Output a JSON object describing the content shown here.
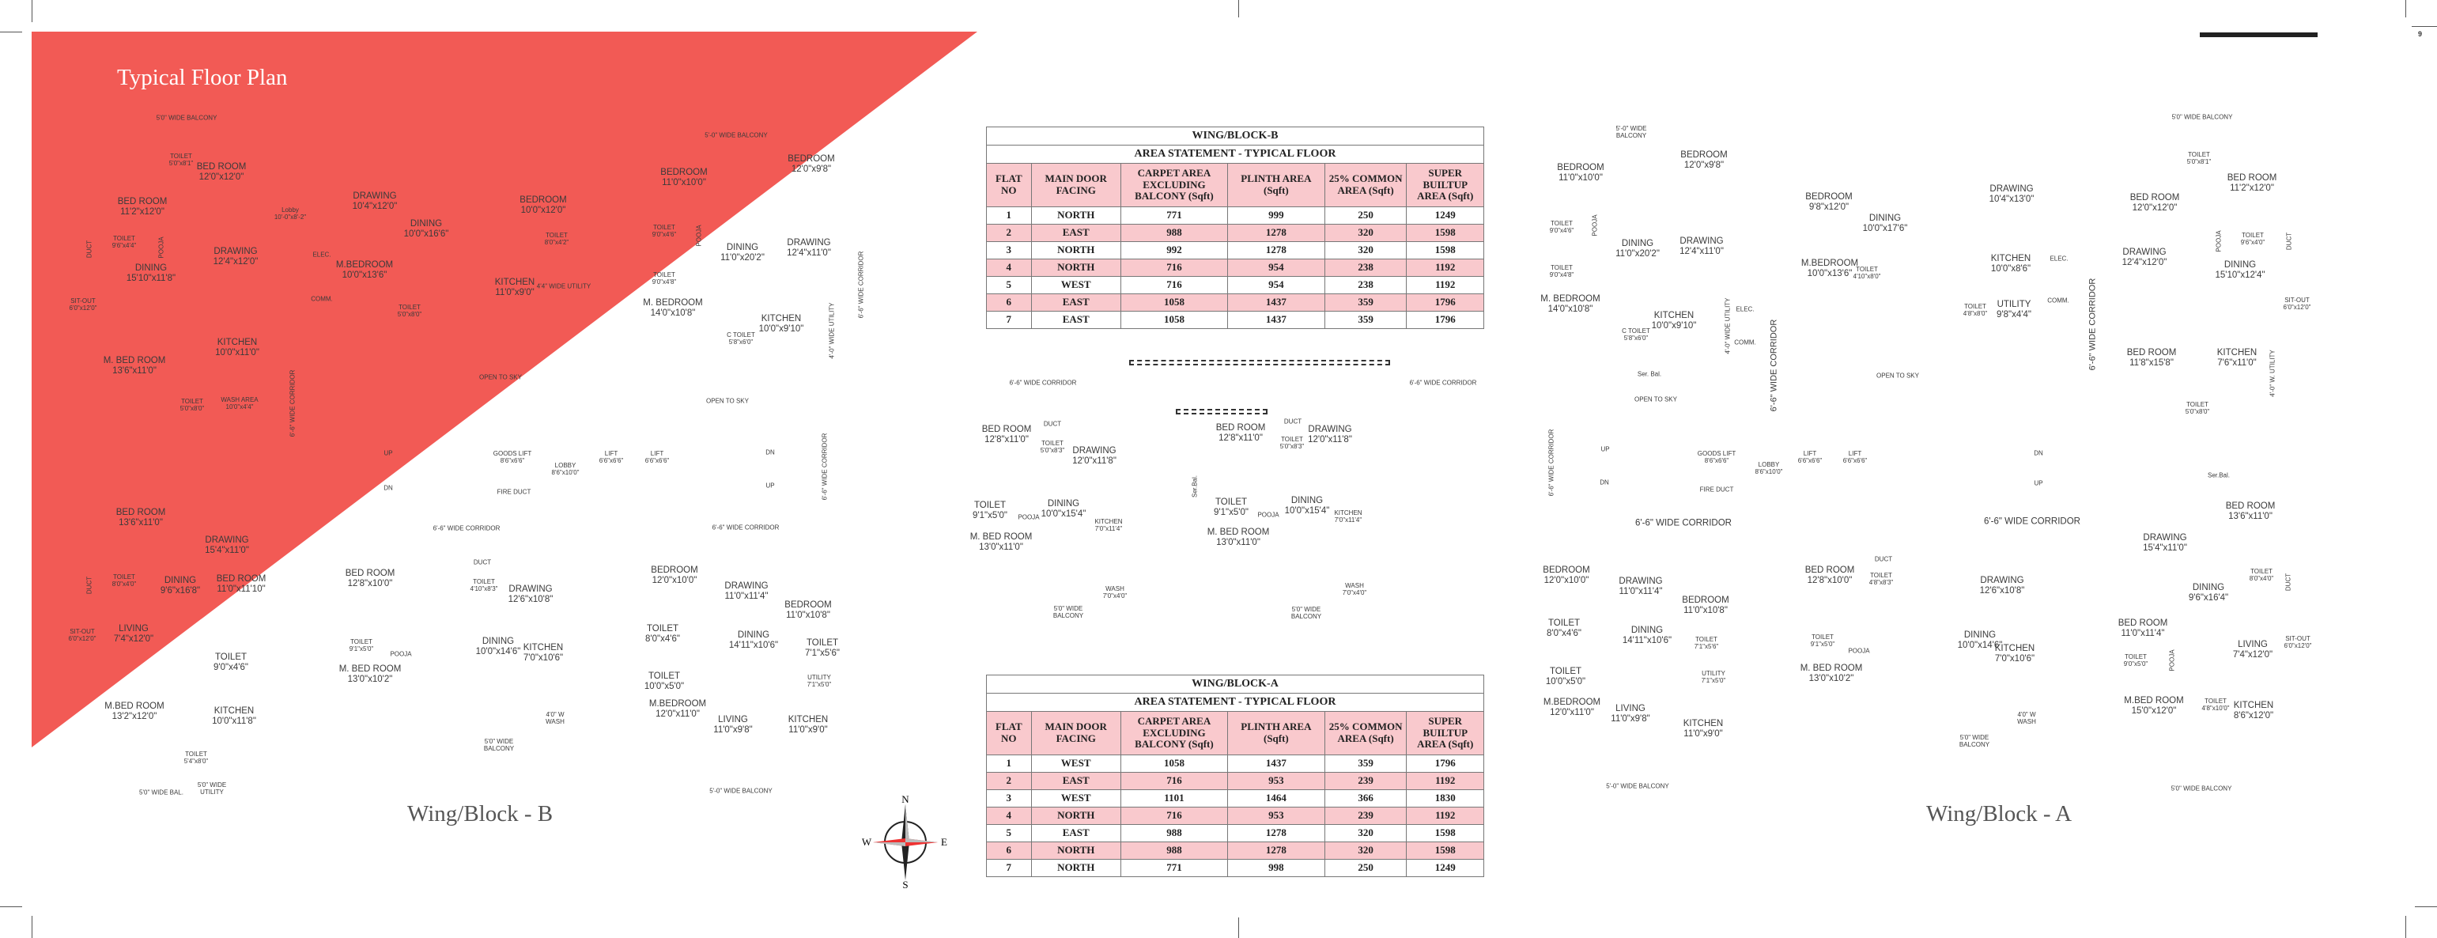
{
  "page": {
    "title": "Typical Floor Plan",
    "page_number": "9",
    "accent_color": "#f25a55",
    "table_highlight_color": "#f9c9cd"
  },
  "wing_labels": {
    "b": "Wing/Block - B",
    "a": "Wing/Block - A"
  },
  "compass": {
    "n": "N",
    "s": "S",
    "e": "E",
    "w": "W"
  },
  "table_b": {
    "title": "WING/BLOCK-B",
    "subtitle": "AREA STATEMENT - TYPICAL FLOOR",
    "headers": [
      "FLAT NO",
      "MAIN DOOR FACING",
      "CARPET AREA EXCLUDING BALCONY (Sqft)",
      "PLINTH AREA (Sqft)",
      "25% COMMON AREA (Sqft)",
      "SUPER BUILTUP AREA (Sqft)"
    ],
    "rows": [
      [
        "1",
        "NORTH",
        "771",
        "999",
        "250",
        "1249"
      ],
      [
        "2",
        "EAST",
        "988",
        "1278",
        "320",
        "1598"
      ],
      [
        "3",
        "NORTH",
        "992",
        "1278",
        "320",
        "1598"
      ],
      [
        "4",
        "NORTH",
        "716",
        "954",
        "238",
        "1192"
      ],
      [
        "5",
        "WEST",
        "716",
        "954",
        "238",
        "1192"
      ],
      [
        "6",
        "EAST",
        "1058",
        "1437",
        "359",
        "1796"
      ],
      [
        "7",
        "EAST",
        "1058",
        "1437",
        "359",
        "1796"
      ]
    ]
  },
  "table_a": {
    "title": "WING/BLOCK-A",
    "subtitle": "AREA STATEMENT - TYPICAL FLOOR",
    "headers": [
      "FLAT NO",
      "MAIN DOOR FACING",
      "CARPET AREA EXCLUDING BALCONY (Sqft)",
      "PLINTH AREA (Sqft)",
      "25% COMMON AREA (Sqft)",
      "SUPER BUILTUP AREA (Sqft)"
    ],
    "rows": [
      [
        "1",
        "WEST",
        "1058",
        "1437",
        "359",
        "1796"
      ],
      [
        "2",
        "EAST",
        "716",
        "953",
        "239",
        "1192"
      ],
      [
        "3",
        "WEST",
        "1101",
        "1464",
        "366",
        "1830"
      ],
      [
        "4",
        "NORTH",
        "716",
        "953",
        "239",
        "1192"
      ],
      [
        "5",
        "EAST",
        "988",
        "1278",
        "320",
        "1598"
      ],
      [
        "6",
        "NORTH",
        "988",
        "1278",
        "320",
        "1598"
      ],
      [
        "7",
        "NORTH",
        "771",
        "998",
        "250",
        "1249"
      ]
    ]
  },
  "wing_b_plan": [
    [
      "5'0\" WIDE BALCONY"
    ],
    [
      "TOILET",
      "5'0\"x8'1\""
    ],
    [
      "BED ROOM",
      "12'0\"x12'0\""
    ],
    [
      "BED ROOM",
      "11'2\"x12'0\""
    ],
    [
      "Lobby",
      "10'-0\"x8'-2\""
    ],
    [
      "DRAWING",
      "10'4\"x12'0\""
    ],
    [
      "DINING",
      "10'0\"x16'6\""
    ],
    [
      "TOILET",
      "9'6\"x4'4\""
    ],
    [
      "DRAWING",
      "12'4\"x12'0\""
    ],
    [
      "DINING",
      "15'10\"x11'8\""
    ],
    [
      "ELEC."
    ],
    [
      "M.BEDROOM",
      "10'0\"x13'6\""
    ],
    [
      "SIT-OUT",
      "6'0\"x12'0\""
    ],
    [
      "COMM."
    ],
    [
      "TOILET",
      "5'0\"x8'0\""
    ],
    [
      "KITCHEN",
      "10'0\"x11'0\""
    ],
    [
      "M. BED ROOM",
      "13'6\"x11'0\""
    ],
    [
      "TOILET",
      "5'0\"x8'0\""
    ],
    [
      "WASH AREA",
      "10'0\"x4'4\""
    ],
    [
      "DUCT"
    ],
    [
      "POOJA"
    ],
    [
      "6'-6\" WIDE CORRIDOR"
    ],
    [
      "5'-0\" WIDE BALCONY"
    ],
    [
      "BEDROOM",
      "11'0\"x10'0\""
    ],
    [
      "BEDROOM",
      "10'0\"x12'0\""
    ],
    [
      "TOILET",
      "8'0\"x4'2\""
    ],
    [
      "TOILET",
      "9'0\"x4'6\""
    ],
    [
      "KITCHEN",
      "11'0\"x9'0\""
    ],
    [
      "4'4\" WIDE UTILITY"
    ],
    [
      "POOJA"
    ],
    [
      "BEDROOM",
      "12'0\"x9'8\""
    ],
    [
      "DINING",
      "11'0\"x20'2\""
    ],
    [
      "DRAWING",
      "12'4\"x11'0\""
    ],
    [
      "TOILET",
      "9'0\"x4'8\""
    ],
    [
      "M. BEDROOM",
      "14'0\"x10'8\""
    ],
    [
      "KITCHEN",
      "10'0\"x9'10\""
    ],
    [
      "C TOILET",
      "5'8\"x6'0\""
    ],
    [
      "OPEN TO SKY"
    ],
    [
      "OPEN TO SKY"
    ],
    [
      "6'-6\" WIDE CORRIDOR"
    ],
    [
      "4'-0\" WIDE UTILITY"
    ],
    [
      "GOODS LIFT",
      "8'6\"x6'6\""
    ],
    [
      "LOBBY",
      "8'6\"x10'0\""
    ],
    [
      "LIFT",
      "6'6\"x6'6\""
    ],
    [
      "LIFT",
      "6'6\"x6'6\""
    ],
    [
      "FIRE DUCT"
    ],
    [
      "DN"
    ],
    [
      "UP"
    ],
    [
      "6'-6\" WIDE CORRIDOR"
    ],
    [
      "6'-6\" WIDE CORRIDOR"
    ],
    [
      "6'-6\" WIDE CORRIDOR"
    ],
    [
      "DUCT"
    ],
    [
      "TOILET",
      "4'10\"x8'3\""
    ],
    [
      "DRAWING",
      "12'6\"x10'8\""
    ],
    [
      "BEDROOM",
      "12'0\"x10'0\""
    ],
    [
      "DRAWING",
      "11'0\"x11'4\""
    ],
    [
      "BEDROOM",
      "11'0\"x10'8\""
    ],
    [
      "DINING",
      "10'0\"x14'6\""
    ],
    [
      "KITCHEN",
      "7'0\"x10'6\""
    ],
    [
      "TOILET",
      "8'0\"x4'6\""
    ],
    [
      "DINING",
      "14'11\"x10'6\""
    ],
    [
      "TOILET",
      "7'1\"x5'6\""
    ],
    [
      "TOILET",
      "10'0\"x5'0\""
    ],
    [
      "UTILITY",
      "7'1\"x5'0\""
    ],
    [
      "M.BEDROOM",
      "12'0\"x11'0\""
    ],
    [
      "LIVING",
      "11'0\"x9'8\""
    ],
    [
      "KITCHEN",
      "11'0\"x9'0\""
    ],
    [
      "4'0\" W",
      "WASH"
    ],
    [
      "5'0\" WIDE",
      "BALCONY"
    ],
    [
      "5'-0\" WIDE BALCONY"
    ],
    [
      "BED ROOM",
      "13'6\"x11'0\""
    ],
    [
      "DRAWING",
      "15'4\"x11'0\""
    ],
    [
      "TOILET",
      "8'0\"x4'0\""
    ],
    [
      "DINING",
      "9'6\"x16'8\""
    ],
    [
      "BED ROOM",
      "11'0\"x11'10\""
    ],
    [
      "SIT-OUT",
      "6'0\"x12'0\""
    ],
    [
      "LIVING",
      "7'4\"x12'0\""
    ],
    [
      "TOILET",
      "9'0\"x4'6\""
    ],
    [
      "M.BED ROOM",
      "13'2\"x12'0\""
    ],
    [
      "KITCHEN",
      "10'0\"x11'8\""
    ],
    [
      "BED ROOM",
      "12'8\"x10'0\""
    ],
    [
      "TOILET",
      "9'1\"x5'0\""
    ],
    [
      "POOJA"
    ],
    [
      "M. BED ROOM",
      "13'0\"x10'2\""
    ],
    [
      "TOILET",
      "5'4\"x8'0\""
    ],
    [
      "5'0\" WIDE BAL."
    ],
    [
      "5'0\" WIDE",
      "UTILITY"
    ],
    [
      "DUCT"
    ],
    [
      "UP"
    ],
    [
      "DN"
    ]
  ],
  "center_plan": [
    [
      "6'-6\" WIDE CORRIDOR"
    ],
    [
      "6'-6\" WIDE CORRIDOR"
    ],
    [
      "BED ROOM",
      "12'8\"x11'0\""
    ],
    [
      "DUCT"
    ],
    [
      "TOILET",
      "5'0\"x8'3\""
    ],
    [
      "DRAWING",
      "12'0\"x11'8\""
    ],
    [
      "TOILET",
      "9'1\"x5'0\""
    ],
    [
      "POOJA"
    ],
    [
      "DINING",
      "10'0\"x15'4\""
    ],
    [
      "KITCHEN",
      "7'0\"x11'4\""
    ],
    [
      "M. BED ROOM",
      "13'0\"x11'0\""
    ],
    [
      "WASH",
      "7'0\"x4'0\""
    ],
    [
      "5'0\" WIDE",
      "BALCONY"
    ],
    [
      "BED ROOM",
      "12'8\"x11'0\""
    ],
    [
      "DUCT"
    ],
    [
      "TOILET",
      "5'0\"x8'3\""
    ],
    [
      "DRAWING",
      "12'0\"x11'8\""
    ],
    [
      "TOILET",
      "9'1\"x5'0\""
    ],
    [
      "POOJA"
    ],
    [
      "DINING",
      "10'0\"x15'4\""
    ],
    [
      "KITCHEN",
      "7'0\"x11'4\""
    ],
    [
      "M. BED ROOM",
      "13'0\"x11'0\""
    ],
    [
      "WASH",
      "7'0\"x4'0\""
    ],
    [
      "5'0\" WIDE",
      "BALCONY"
    ],
    [
      "Ser.Bal."
    ]
  ],
  "wing_a_plan": [
    [
      "5'-0\" WIDE",
      "BALCONY"
    ],
    [
      "BEDROOM",
      "12'0\"x9'8\""
    ],
    [
      "BEDROOM",
      "11'0\"x10'0\""
    ],
    [
      "BEDROOM",
      "9'8\"x12'0\""
    ],
    [
      "DINING",
      "10'0\"x17'6\""
    ],
    [
      "TOILET",
      "9'0\"x4'6\""
    ],
    [
      "POOJA"
    ],
    [
      "DINING",
      "11'0\"x20'2\""
    ],
    [
      "DRAWING",
      "12'4\"x11'0\""
    ],
    [
      "TOILET",
      "9'0\"x4'8\""
    ],
    [
      "M.BEDROOM",
      "10'0\"x13'6\""
    ],
    [
      "TOILET",
      "4'10\"x8'0\""
    ],
    [
      "M. BEDROOM",
      "14'0\"x10'8\""
    ],
    [
      "KITCHEN",
      "10'0\"x9'10\""
    ],
    [
      "C TOILET",
      "5'8\"x6'0\""
    ],
    [
      "ELEC."
    ],
    [
      "COMM."
    ],
    [
      "4'-0\" WIDE UTILITY"
    ],
    [
      "Ser. Bal."
    ],
    [
      "OPEN TO SKY"
    ],
    [
      "6'-6\" WIDE CORRIDOR"
    ],
    [
      "OPEN TO SKY"
    ],
    [
      "5'0\" WIDE BALCONY"
    ],
    [
      "TOILET",
      "5'0\"x8'1\""
    ],
    [
      "BED ROOM",
      "11'2\"x12'0\""
    ],
    [
      "DRAWING",
      "10'4\"x13'0\""
    ],
    [
      "BED ROOM",
      "12'0\"x12'0\""
    ],
    [
      "KITCHEN",
      "10'0\"x8'6\""
    ],
    [
      "ELEC."
    ],
    [
      "DRAWING",
      "12'4\"x12'0\""
    ],
    [
      "TOILET",
      "9'6\"x4'0\""
    ],
    [
      "POOJA"
    ],
    [
      "DUCT"
    ],
    [
      "DINING",
      "15'10\"x12'4\""
    ],
    [
      "UTILITY",
      "9'8\"x4'4\""
    ],
    [
      "TOILET",
      "4'8\"x8'0\""
    ],
    [
      "COMM."
    ],
    [
      "SIT-OUT",
      "6'0\"x12'0\""
    ],
    [
      "6'-6\" WIDE CORRIDOR"
    ],
    [
      "BED ROOM",
      "11'8\"x15'8\""
    ],
    [
      "KITCHEN",
      "7'6\"x11'0\""
    ],
    [
      "4'-0\" W. UTILITY"
    ],
    [
      "TOILET",
      "5'0\"x8'0\""
    ],
    [
      "6'-6\" WIDE CORRIDOR"
    ],
    [
      "UP"
    ],
    [
      "DN"
    ],
    [
      "GOODS LIFT",
      "8'6\"x6'6\""
    ],
    [
      "LOBBY",
      "8'6\"x10'0\""
    ],
    [
      "LIFT",
      "6'6\"x6'6\""
    ],
    [
      "LIFT",
      "6'6\"x6'6\""
    ],
    [
      "FIRE DUCT"
    ],
    [
      "6'-6\" WIDE CORRIDOR"
    ],
    [
      "BEDROOM",
      "12'0\"x10'0\""
    ],
    [
      "DRAWING",
      "11'0\"x11'4\""
    ],
    [
      "BEDROOM",
      "11'0\"x10'8\""
    ],
    [
      "TOILET",
      "8'0\"x4'6\""
    ],
    [
      "DINING",
      "14'11\"x10'6\""
    ],
    [
      "TOILET",
      "7'1\"x5'6\""
    ],
    [
      "TOILET",
      "10'0\"x5'0\""
    ],
    [
      "UTILITY",
      "7'1\"x5'0\""
    ],
    [
      "M.BEDROOM",
      "12'0\"x11'0\""
    ],
    [
      "LIVING",
      "11'0\"x9'8\""
    ],
    [
      "KITCHEN",
      "11'0\"x9'0\""
    ],
    [
      "5'-0\" WIDE BALCONY"
    ],
    [
      "BED ROOM",
      "12'8\"x10'0\""
    ],
    [
      "DUCT"
    ],
    [
      "TOILET",
      "4'8\"x8'3\""
    ],
    [
      "TOILET",
      "9'1\"x5'0\""
    ],
    [
      "POOJA"
    ],
    [
      "M. BED ROOM",
      "13'0\"x10'2\""
    ],
    [
      "DN"
    ],
    [
      "UP"
    ],
    [
      "Ser.Bal."
    ],
    [
      "6'-6\" WIDE CORRIDOR"
    ],
    [
      "BED ROOM",
      "13'6\"x11'0\""
    ],
    [
      "DRAWING",
      "15'4\"x11'0\""
    ],
    [
      "DRAWING",
      "12'6\"x10'8\""
    ],
    [
      "TOILET",
      "8'0\"x4'0\""
    ],
    [
      "DUCT"
    ],
    [
      "DINING",
      "9'6\"x16'4\""
    ],
    [
      "BED ROOM",
      "11'0\"x11'4\""
    ],
    [
      "DINING",
      "10'0\"x14'6\""
    ],
    [
      "KITCHEN",
      "7'0\"x10'6\""
    ],
    [
      "TOILET",
      "9'0\"x5'0\""
    ],
    [
      "POOJA"
    ],
    [
      "LIVING",
      "7'4\"x12'0\""
    ],
    [
      "SIT-OUT",
      "6'0\"x12'0\""
    ],
    [
      "M.BED ROOM",
      "15'0\"x12'0\""
    ],
    [
      "TOILET",
      "4'8\"x10'0\""
    ],
    [
      "KITCHEN",
      "8'6\"x12'0\""
    ],
    [
      "4'0\" W",
      "WASH"
    ],
    [
      "5'0\" WIDE",
      "BALCONY"
    ],
    [
      "5'0\" WIDE BALCONY"
    ]
  ]
}
